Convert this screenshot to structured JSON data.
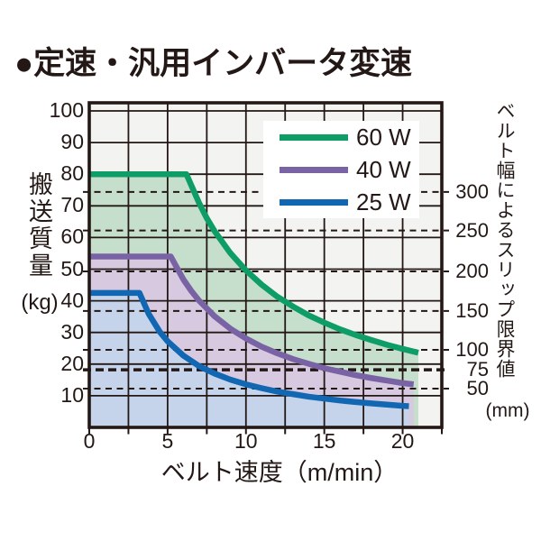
{
  "title": "●定速・汎用インバータ変速",
  "colors": {
    "ink": "#231815",
    "plot_bg": "#f3f3f1",
    "green_line": "#0f9d67",
    "purple_line": "#7a63a5",
    "blue_line": "#1167b2",
    "green_fill": "#c6dfcc",
    "purple_fill": "#d6c9e0",
    "blue_fill": "#c6d4eb"
  },
  "chart_data": {
    "type": "area",
    "title": "定速・汎用インバータ変速",
    "xlabel": "ベルト速度（m/min）",
    "ylabel_left": "搬送質量",
    "ylabel_left_unit": "(kg)",
    "ylabel_right": "ベルト幅によるスリップ限界値",
    "ylabel_right_unit": "(mm)",
    "xlim": [
      0,
      22.5
    ],
    "ylim": [
      0,
      102.5
    ],
    "x_ticks": [
      0,
      5,
      10,
      15,
      20
    ],
    "x_minor_step": 2.5,
    "y_ticks_left": [
      100,
      90,
      80,
      70,
      60,
      50,
      40,
      30,
      20,
      10
    ],
    "grid": true,
    "legend_position": "upper right",
    "right_axis_dashed_lines": [
      {
        "label": "300",
        "kg": 74.4,
        "bold": false
      },
      {
        "label": "250",
        "kg": 62.2,
        "bold": false
      },
      {
        "label": "200",
        "kg": 49.3,
        "bold": false
      },
      {
        "label": "150",
        "kg": 36.8,
        "bold": false
      },
      {
        "label": "100",
        "kg": 24.5,
        "bold": false
      },
      {
        "label": "75",
        "kg": 18.2,
        "bold": true
      },
      {
        "label": "50",
        "kg": 12.25,
        "bold": false
      }
    ],
    "series": [
      {
        "name": "60 W",
        "color": "#0f9d67",
        "fill": "#c6dfcc",
        "points": [
          [
            0,
            80
          ],
          [
            6.2,
            80
          ],
          [
            7,
            71
          ],
          [
            7.5,
            66.1
          ],
          [
            8,
            62
          ],
          [
            9,
            55.1
          ],
          [
            10,
            49.6
          ],
          [
            11,
            45.1
          ],
          [
            12,
            41.3
          ],
          [
            13,
            38.2
          ],
          [
            14,
            35.4
          ],
          [
            15,
            33.1
          ],
          [
            16,
            31
          ],
          [
            17,
            29.2
          ],
          [
            18,
            27.6
          ],
          [
            19,
            26.1
          ],
          [
            20,
            24.8
          ],
          [
            21,
            23.6
          ]
        ]
      },
      {
        "name": "40 W",
        "color": "#7a63a5",
        "fill": "#d6c9e0",
        "points": [
          [
            0,
            54
          ],
          [
            5.2,
            54
          ],
          [
            6,
            46.8
          ],
          [
            6.5,
            43.2
          ],
          [
            7,
            40.1
          ],
          [
            8,
            35.1
          ],
          [
            9,
            31.2
          ],
          [
            10,
            28.1
          ],
          [
            11,
            25.5
          ],
          [
            12,
            23.4
          ],
          [
            13,
            21.6
          ],
          [
            14,
            20.1
          ],
          [
            15,
            18.7
          ],
          [
            16,
            17.6
          ],
          [
            17,
            16.5
          ],
          [
            18,
            15.6
          ],
          [
            19,
            14.8
          ],
          [
            20,
            14
          ],
          [
            20.7,
            13.6
          ]
        ]
      },
      {
        "name": "25 W",
        "color": "#1167b2",
        "fill": "#c6d4eb",
        "points": [
          [
            0,
            42.5
          ],
          [
            3.2,
            42.5
          ],
          [
            3.8,
            35.8
          ],
          [
            4.5,
            30.2
          ],
          [
            5,
            27.2
          ],
          [
            6,
            22.7
          ],
          [
            7,
            19.4
          ],
          [
            8,
            17
          ],
          [
            9,
            15.1
          ],
          [
            10,
            13.6
          ],
          [
            11,
            12.4
          ],
          [
            12,
            11.3
          ],
          [
            13,
            10.5
          ],
          [
            14,
            9.7
          ],
          [
            15,
            9.1
          ],
          [
            16,
            8.5
          ],
          [
            17,
            8
          ],
          [
            18,
            7.6
          ],
          [
            19,
            7.2
          ],
          [
            20,
            6.8
          ],
          [
            20.4,
            6.7
          ]
        ]
      }
    ]
  }
}
